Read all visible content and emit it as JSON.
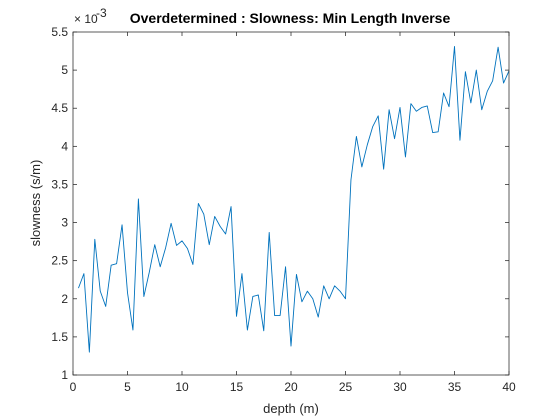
{
  "chart_data": {
    "type": "line",
    "title": "Overdetermined : Slowness: Min Length Inverse",
    "xlabel": "depth (m)",
    "ylabel": "slowness (s/m)",
    "xlim": [
      0,
      40
    ],
    "ylim": [
      1,
      5.5
    ],
    "y_scale_note": "× 10^-3",
    "y_multiplier_base": "× 10",
    "y_multiplier_exp": "-3",
    "x_ticks": [
      0,
      5,
      10,
      15,
      20,
      25,
      30,
      35,
      40
    ],
    "x_tick_labels": [
      "0",
      "5",
      "10",
      "15",
      "20",
      "25",
      "30",
      "35",
      "40"
    ],
    "y_ticks": [
      1,
      1.5,
      2,
      2.5,
      3,
      3.5,
      4,
      4.5,
      5,
      5.5
    ],
    "y_tick_labels": [
      "1",
      "1.5",
      "2",
      "2.5",
      "3",
      "3.5",
      "4",
      "4.5",
      "5",
      "5.5"
    ],
    "grid": false,
    "line_color": "#0072BD",
    "series": [
      {
        "x": [
          0.5,
          1.0,
          1.5,
          2.0,
          2.5,
          3.0,
          3.5,
          4.0,
          4.5,
          5.0,
          5.5,
          6.0,
          6.5,
          7.0,
          7.5,
          8.0,
          8.5,
          9.0,
          9.5,
          10.0,
          10.5,
          11.0,
          11.5,
          12.0,
          12.5,
          13.0,
          13.5,
          14.0,
          14.5,
          15.0,
          15.5,
          16.0,
          16.5,
          17.0,
          17.5,
          18.0,
          18.5,
          19.0,
          19.5,
          20.0,
          20.5,
          21.0,
          21.5,
          22.0,
          22.5,
          23.0,
          23.5,
          24.0,
          24.5,
          25.0,
          25.5,
          26.0,
          26.5,
          27.0,
          27.5,
          28.0,
          28.5,
          29.0,
          29.5,
          30.0,
          30.5,
          31.0,
          31.5,
          32.0,
          32.5,
          33.0,
          33.5,
          34.0,
          34.5,
          35.0,
          35.5,
          36.0,
          36.5,
          37.0,
          37.5,
          38.0,
          38.5,
          39.0,
          39.5,
          40.0
        ],
        "values": [
          2.14,
          2.33,
          1.3,
          2.78,
          2.1,
          1.9,
          2.44,
          2.46,
          2.97,
          2.08,
          1.59,
          3.31,
          2.03,
          2.35,
          2.71,
          2.42,
          2.67,
          2.99,
          2.7,
          2.76,
          2.66,
          2.45,
          3.25,
          3.11,
          2.71,
          3.08,
          2.95,
          2.85,
          3.21,
          1.77,
          2.33,
          1.59,
          2.03,
          2.05,
          1.58,
          2.87,
          1.78,
          1.78,
          2.42,
          1.38,
          2.32,
          1.96,
          2.1,
          2.0,
          1.76,
          2.17,
          2.0,
          2.17,
          2.1,
          2.0,
          3.56,
          4.13,
          3.73,
          4.02,
          4.26,
          4.4,
          3.7,
          4.48,
          4.1,
          4.51,
          3.86,
          4.56,
          4.46,
          4.51,
          4.53,
          4.18,
          4.19,
          4.7,
          4.52,
          5.31,
          4.08,
          4.98,
          4.57,
          5.0,
          4.48,
          4.72,
          4.86,
          5.3,
          4.83,
          4.99
        ]
      }
    ]
  }
}
